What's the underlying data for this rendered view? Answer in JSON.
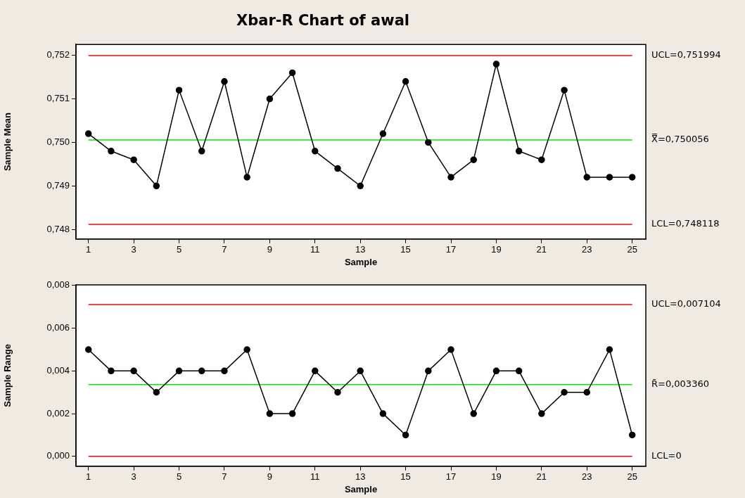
{
  "chart_data": [
    {
      "type": "line",
      "title": "Xbar-R Chart of awal",
      "xlabel": "Sample",
      "ylabel": "Sample Mean",
      "marker": "circle",
      "grid": false,
      "x": [
        1,
        2,
        3,
        4,
        5,
        6,
        7,
        8,
        9,
        10,
        11,
        12,
        13,
        14,
        15,
        16,
        17,
        18,
        19,
        20,
        21,
        22,
        23,
        24,
        25
      ],
      "series": [
        {
          "color": "#000000",
          "values": [
            0.7502,
            0.7498,
            0.7496,
            0.749,
            0.7512,
            0.7498,
            0.7514,
            0.7492,
            0.751,
            0.7516,
            0.7498,
            0.7494,
            0.749,
            0.7502,
            0.7514,
            0.75,
            0.7492,
            0.7496,
            0.7518,
            0.7498,
            0.7496,
            0.7512,
            0.7492,
            0.7492,
            0.7492
          ]
        }
      ],
      "xlim": [
        0.45,
        25.6
      ],
      "xticks": [
        1,
        3,
        5,
        7,
        9,
        11,
        13,
        15,
        17,
        19,
        21,
        23,
        25
      ],
      "ylim": [
        0.74778,
        0.75225
      ],
      "yticks": [
        {
          "value": 0.748,
          "label": "0,748"
        },
        {
          "value": 0.749,
          "label": "0,749"
        },
        {
          "value": 0.75,
          "label": "0,750"
        },
        {
          "value": 0.751,
          "label": "0,751"
        },
        {
          "value": 0.752,
          "label": "0,752"
        }
      ],
      "ref_lines": [
        {
          "axis": "y",
          "value": 0.751994,
          "label": "UCL=0,751994",
          "color": "#ff0000"
        },
        {
          "axis": "y",
          "value": 0.750056,
          "label": "X̿=0,750056",
          "color": "#00ee00"
        },
        {
          "axis": "y",
          "value": 0.748118,
          "label": "LCL=0,748118",
          "color": "#ff0000"
        }
      ]
    },
    {
      "type": "line",
      "xlabel": "Sample",
      "ylabel": "Sample Range",
      "marker": "circle",
      "grid": false,
      "x": [
        1,
        2,
        3,
        4,
        5,
        6,
        7,
        8,
        9,
        10,
        11,
        12,
        13,
        14,
        15,
        16,
        17,
        18,
        19,
        20,
        21,
        22,
        23,
        24,
        25
      ],
      "series": [
        {
          "color": "#000000",
          "values": [
            0.005,
            0.004,
            0.004,
            0.003,
            0.004,
            0.004,
            0.004,
            0.005,
            0.002,
            0.002,
            0.004,
            0.003,
            0.004,
            0.002,
            0.001,
            0.004,
            0.005,
            0.002,
            0.004,
            0.004,
            0.002,
            0.003,
            0.003,
            0.005,
            0.001
          ]
        }
      ],
      "xlim": [
        0.45,
        25.6
      ],
      "xticks": [
        1,
        3,
        5,
        7,
        9,
        11,
        13,
        15,
        17,
        19,
        21,
        23,
        25
      ],
      "ylim": [
        -0.00046,
        0.00803
      ],
      "yticks": [
        {
          "value": 0,
          "label": "0,000"
        },
        {
          "value": 0.002,
          "label": "0,002"
        },
        {
          "value": 0.004,
          "label": "0,004"
        },
        {
          "value": 0.006,
          "label": "0,006"
        },
        {
          "value": 0.008,
          "label": "0,008"
        }
      ],
      "ref_lines": [
        {
          "axis": "y",
          "value": 0.007104,
          "label": "UCL=0,007104",
          "color": "#ff0000"
        },
        {
          "axis": "y",
          "value": 0.00336,
          "label": "R̄=0,003360",
          "color": "#00ee00"
        },
        {
          "axis": "y",
          "value": 0,
          "label": "LCL=0",
          "color": "#ff0000"
        }
      ]
    }
  ]
}
